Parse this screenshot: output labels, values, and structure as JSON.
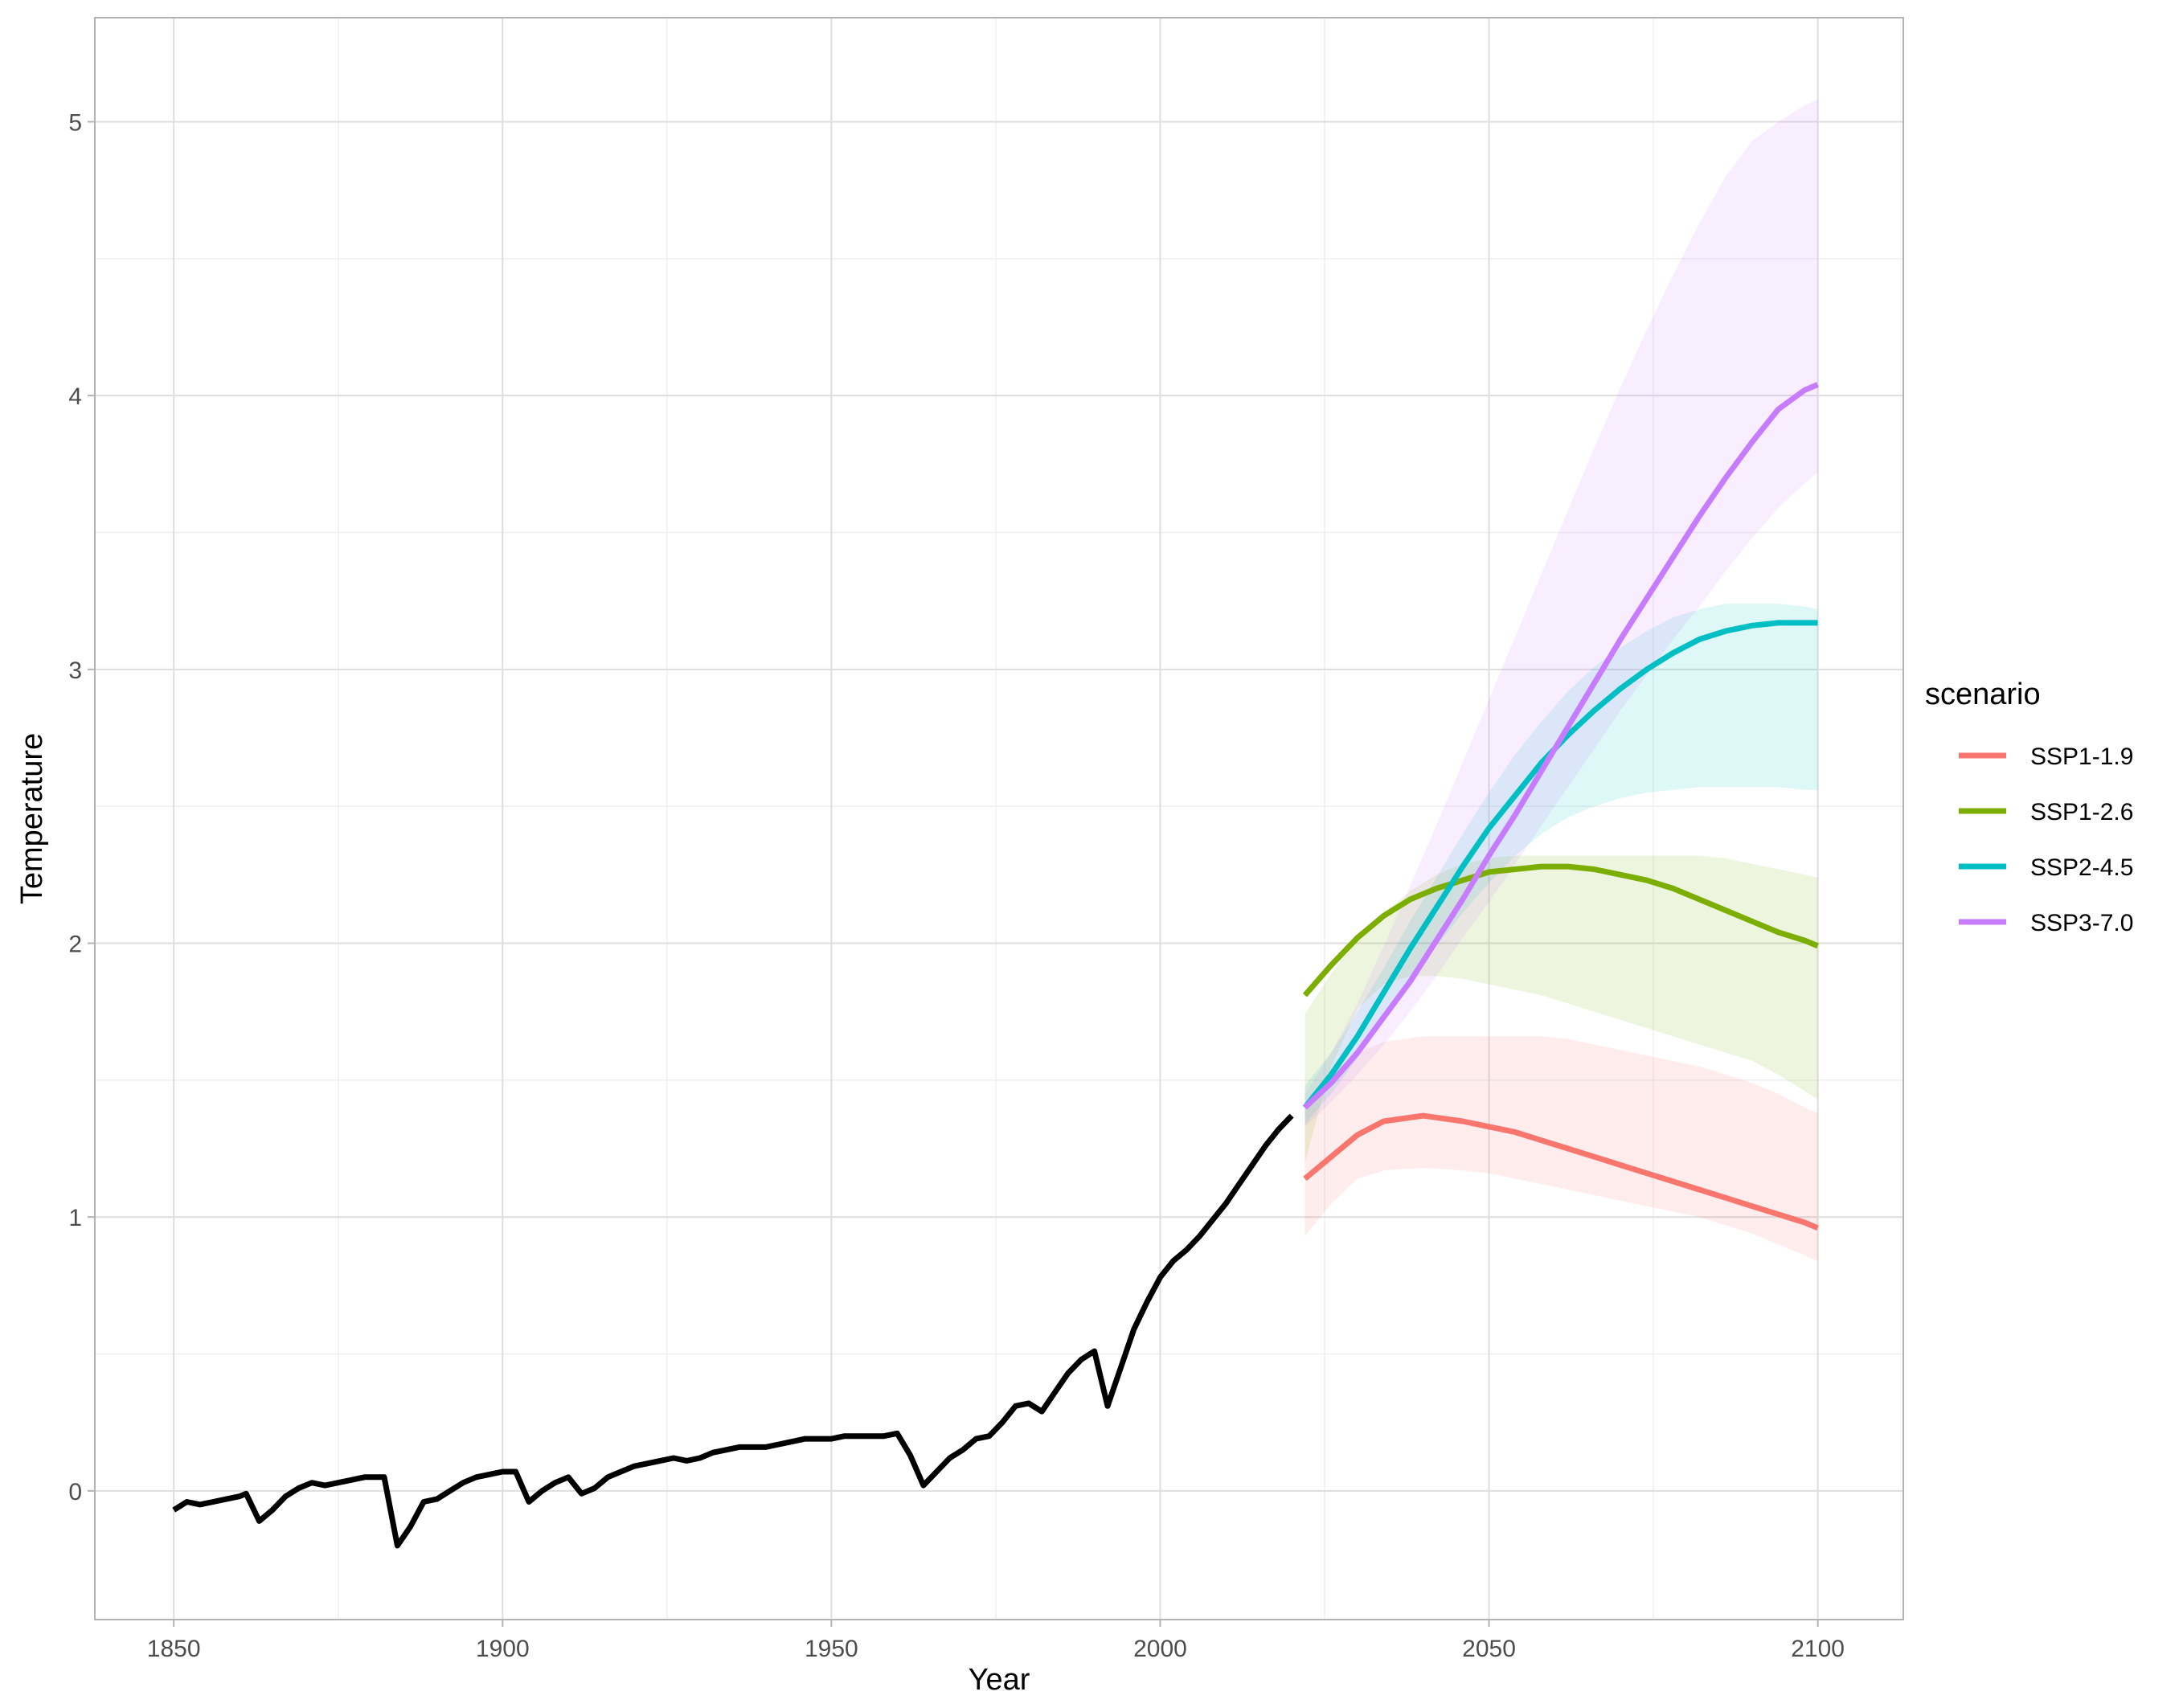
{
  "chart_data": {
    "type": "line",
    "xlabel": "Year",
    "ylabel": "Temperature",
    "xlim": [
      1838,
      2113
    ],
    "ylim": [
      -0.47,
      5.38
    ],
    "x_ticks": [
      1850,
      1900,
      1950,
      2000,
      2050,
      2100
    ],
    "x_tick_labels": [
      "1850",
      "1900",
      "1950",
      "2000",
      "2050",
      "2100"
    ],
    "y_ticks": [
      0,
      1,
      2,
      3,
      4,
      5
    ],
    "y_tick_labels": [
      "0",
      "1",
      "2",
      "3",
      "4",
      "5"
    ],
    "grid": true,
    "legend": {
      "title": "scenario",
      "position": "right"
    },
    "historical": {
      "color": "#000000",
      "points": [
        [
          1850,
          -0.07
        ],
        [
          1852,
          -0.04
        ],
        [
          1854,
          -0.05
        ],
        [
          1856,
          -0.04
        ],
        [
          1858,
          -0.03
        ],
        [
          1860,
          -0.02
        ],
        [
          1861,
          -0.01
        ],
        [
          1863,
          -0.11
        ],
        [
          1865,
          -0.07
        ],
        [
          1867,
          -0.02
        ],
        [
          1869,
          0.01
        ],
        [
          1871,
          0.03
        ],
        [
          1873,
          0.02
        ],
        [
          1875,
          0.03
        ],
        [
          1877,
          0.04
        ],
        [
          1879,
          0.05
        ],
        [
          1881,
          0.05
        ],
        [
          1882,
          0.05
        ],
        [
          1884,
          -0.2
        ],
        [
          1886,
          -0.13
        ],
        [
          1888,
          -0.04
        ],
        [
          1890,
          -0.03
        ],
        [
          1892,
          0.0
        ],
        [
          1894,
          0.03
        ],
        [
          1896,
          0.05
        ],
        [
          1898,
          0.06
        ],
        [
          1900,
          0.07
        ],
        [
          1902,
          0.07
        ],
        [
          1904,
          -0.04
        ],
        [
          1906,
          0.0
        ],
        [
          1908,
          0.03
        ],
        [
          1910,
          0.05
        ],
        [
          1912,
          -0.01
        ],
        [
          1914,
          0.01
        ],
        [
          1916,
          0.05
        ],
        [
          1918,
          0.07
        ],
        [
          1920,
          0.09
        ],
        [
          1922,
          0.1
        ],
        [
          1924,
          0.11
        ],
        [
          1926,
          0.12
        ],
        [
          1928,
          0.11
        ],
        [
          1930,
          0.12
        ],
        [
          1932,
          0.14
        ],
        [
          1934,
          0.15
        ],
        [
          1936,
          0.16
        ],
        [
          1938,
          0.16
        ],
        [
          1940,
          0.16
        ],
        [
          1942,
          0.17
        ],
        [
          1944,
          0.18
        ],
        [
          1946,
          0.19
        ],
        [
          1948,
          0.19
        ],
        [
          1950,
          0.19
        ],
        [
          1952,
          0.2
        ],
        [
          1954,
          0.2
        ],
        [
          1956,
          0.2
        ],
        [
          1958,
          0.2
        ],
        [
          1960,
          0.21
        ],
        [
          1962,
          0.13
        ],
        [
          1964,
          0.02
        ],
        [
          1966,
          0.07
        ],
        [
          1968,
          0.12
        ],
        [
          1970,
          0.15
        ],
        [
          1972,
          0.19
        ],
        [
          1974,
          0.2
        ],
        [
          1976,
          0.25
        ],
        [
          1978,
          0.31
        ],
        [
          1980,
          0.32
        ],
        [
          1982,
          0.29
        ],
        [
          1984,
          0.36
        ],
        [
          1986,
          0.43
        ],
        [
          1988,
          0.48
        ],
        [
          1990,
          0.51
        ],
        [
          1992,
          0.31
        ],
        [
          1994,
          0.45
        ],
        [
          1996,
          0.59
        ],
        [
          1998,
          0.69
        ],
        [
          2000,
          0.78
        ],
        [
          2002,
          0.84
        ],
        [
          2004,
          0.88
        ],
        [
          2006,
          0.93
        ],
        [
          2008,
          0.99
        ],
        [
          2010,
          1.05
        ],
        [
          2012,
          1.12
        ],
        [
          2014,
          1.19
        ],
        [
          2016,
          1.26
        ],
        [
          2018,
          1.32
        ],
        [
          2020,
          1.37
        ]
      ]
    },
    "series": [
      {
        "name": "SSP1-1.9",
        "color": "#F8766D",
        "x": [
          2022,
          2026,
          2030,
          2034,
          2040,
          2046,
          2050,
          2054,
          2058,
          2062,
          2066,
          2070,
          2074,
          2078,
          2082,
          2086,
          2090,
          2094,
          2098,
          2100
        ],
        "y": [
          1.14,
          1.22,
          1.3,
          1.35,
          1.37,
          1.35,
          1.33,
          1.31,
          1.28,
          1.25,
          1.22,
          1.19,
          1.16,
          1.13,
          1.1,
          1.07,
          1.04,
          1.01,
          0.98,
          0.96
        ],
        "lower": [
          0.93,
          1.05,
          1.14,
          1.17,
          1.18,
          1.17,
          1.16,
          1.14,
          1.12,
          1.1,
          1.08,
          1.06,
          1.04,
          1.02,
          1.0,
          0.97,
          0.94,
          0.9,
          0.86,
          0.84
        ],
        "upper": [
          1.39,
          1.52,
          1.6,
          1.64,
          1.66,
          1.66,
          1.66,
          1.66,
          1.66,
          1.65,
          1.63,
          1.61,
          1.59,
          1.57,
          1.55,
          1.52,
          1.49,
          1.45,
          1.4,
          1.38
        ]
      },
      {
        "name": "SSP1-2.6",
        "color": "#7CAE00",
        "x": [
          2022,
          2026,
          2030,
          2034,
          2038,
          2042,
          2046,
          2050,
          2054,
          2058,
          2062,
          2066,
          2070,
          2074,
          2078,
          2082,
          2086,
          2090,
          2094,
          2098,
          2100
        ],
        "y": [
          1.81,
          1.92,
          2.02,
          2.1,
          2.16,
          2.2,
          2.23,
          2.26,
          2.27,
          2.28,
          2.28,
          2.27,
          2.25,
          2.23,
          2.2,
          2.16,
          2.12,
          2.08,
          2.04,
          2.01,
          1.99
        ],
        "lower": [
          1.2,
          1.55,
          1.76,
          1.85,
          1.88,
          1.88,
          1.87,
          1.85,
          1.83,
          1.81,
          1.78,
          1.75,
          1.72,
          1.69,
          1.66,
          1.63,
          1.6,
          1.57,
          1.52,
          1.46,
          1.43
        ],
        "upper": [
          1.74,
          1.89,
          2.01,
          2.11,
          2.19,
          2.25,
          2.29,
          2.31,
          2.32,
          2.32,
          2.32,
          2.32,
          2.32,
          2.32,
          2.32,
          2.32,
          2.31,
          2.29,
          2.27,
          2.25,
          2.24
        ]
      },
      {
        "name": "SSP2-4.5",
        "color": "#00BFC4",
        "x": [
          2022,
          2026,
          2030,
          2034,
          2038,
          2042,
          2046,
          2050,
          2054,
          2058,
          2062,
          2066,
          2070,
          2074,
          2078,
          2082,
          2086,
          2090,
          2094,
          2098,
          2100
        ],
        "y": [
          1.4,
          1.52,
          1.66,
          1.82,
          1.98,
          2.13,
          2.28,
          2.42,
          2.54,
          2.66,
          2.76,
          2.85,
          2.93,
          3.0,
          3.06,
          3.11,
          3.14,
          3.16,
          3.17,
          3.17,
          3.17
        ],
        "lower": [
          1.34,
          1.45,
          1.58,
          1.72,
          1.86,
          1.99,
          2.11,
          2.22,
          2.32,
          2.4,
          2.46,
          2.5,
          2.53,
          2.55,
          2.56,
          2.57,
          2.57,
          2.57,
          2.57,
          2.56,
          2.56
        ],
        "upper": [
          1.48,
          1.6,
          1.75,
          1.91,
          2.08,
          2.24,
          2.4,
          2.55,
          2.69,
          2.81,
          2.92,
          3.01,
          3.08,
          3.14,
          3.19,
          3.22,
          3.24,
          3.24,
          3.24,
          3.23,
          3.22
        ]
      },
      {
        "name": "SSP3-7.0",
        "color": "#C77CFF",
        "x": [
          2022,
          2026,
          2030,
          2034,
          2038,
          2042,
          2046,
          2050,
          2054,
          2058,
          2062,
          2066,
          2070,
          2074,
          2078,
          2082,
          2086,
          2090,
          2094,
          2098,
          2100
        ],
        "y": [
          1.4,
          1.49,
          1.6,
          1.73,
          1.86,
          2.01,
          2.16,
          2.32,
          2.47,
          2.63,
          2.79,
          2.95,
          3.11,
          3.26,
          3.41,
          3.56,
          3.7,
          3.83,
          3.95,
          4.02,
          4.04
        ],
        "lower": [
          1.33,
          1.42,
          1.52,
          1.63,
          1.75,
          1.88,
          2.02,
          2.15,
          2.29,
          2.43,
          2.57,
          2.71,
          2.85,
          2.98,
          3.11,
          3.23,
          3.36,
          3.48,
          3.59,
          3.68,
          3.72
        ],
        "upper": [
          1.45,
          1.6,
          1.78,
          1.99,
          2.21,
          2.43,
          2.66,
          2.89,
          3.12,
          3.35,
          3.58,
          3.81,
          4.03,
          4.24,
          4.44,
          4.63,
          4.8,
          4.93,
          5.0,
          5.06,
          5.08
        ]
      }
    ]
  }
}
